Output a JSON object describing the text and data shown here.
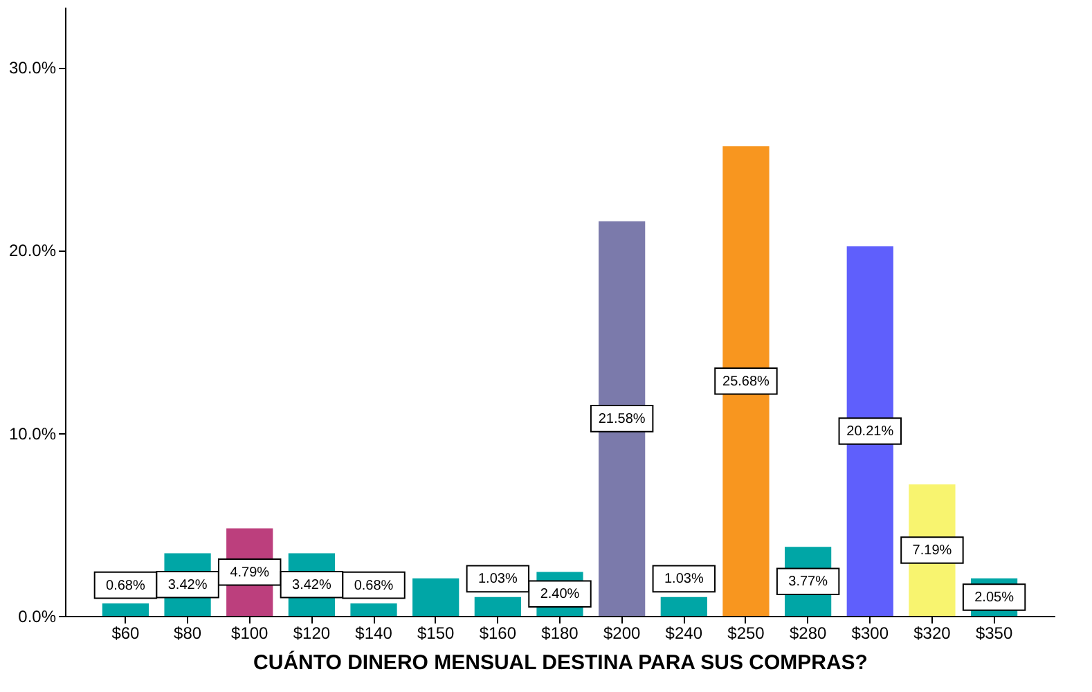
{
  "chart_data": {
    "type": "bar",
    "xlabel": "CUÁNTO DINERO MENSUAL DESTINA PARA SUS COMPRAS?",
    "categories": [
      "$60",
      "$80",
      "$100",
      "$120",
      "$140",
      "$150",
      "$160",
      "$180",
      "$200",
      "$240",
      "$250",
      "$280",
      "$300",
      "$320",
      "$350"
    ],
    "values": [
      0.68,
      3.42,
      4.79,
      3.42,
      0.68,
      2.05,
      1.03,
      2.4,
      21.58,
      1.03,
      25.68,
      3.77,
      20.21,
      7.19,
      2.05
    ],
    "colors": [
      "#00a6a6",
      "#00a6a6",
      "#bc3f7d",
      "#00a6a6",
      "#00a6a6",
      "#00a6a6",
      "#00a6a6",
      "#00a6a6",
      "#7b7aab",
      "#00a6a6",
      "#f8961f",
      "#00a6a6",
      "#5f5ffc",
      "#f8f46f",
      "#00a6a6"
    ],
    "value_labels": [
      "0.68%",
      "3.42%",
      "4.79%",
      "3.42%",
      "0.68%",
      null,
      "1.03%",
      "2.40%",
      "21.58%",
      "1.03%",
      "25.68%",
      "3.77%",
      "20.21%",
      "7.19%",
      "2.05%"
    ],
    "ylim": [
      0,
      33.3
    ],
    "yticks": [
      {
        "value": 0,
        "label": "0.0%"
      },
      {
        "value": 10,
        "label": "10.0%"
      },
      {
        "value": 20,
        "label": "20.0%"
      },
      {
        "value": 30,
        "label": "30.0%"
      }
    ],
    "grid": false
  }
}
